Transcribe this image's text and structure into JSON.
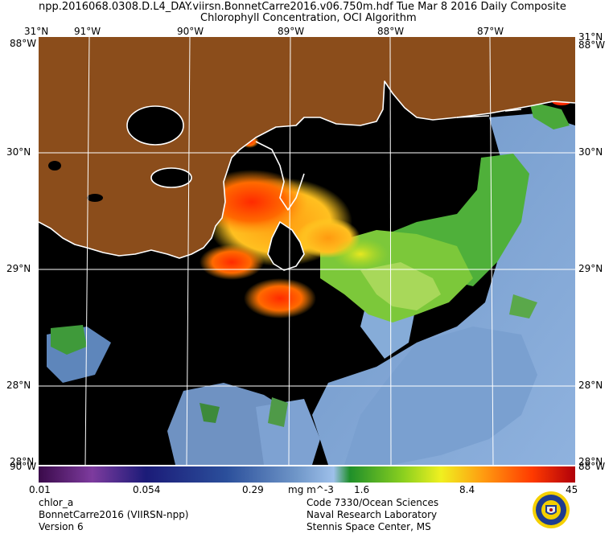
{
  "header": {
    "line1": "npp.2016068.0308.D.L4_DAY.viirsn.BonnetCarre2016.v06.750m.hdf    Tue Mar  8 2016 Daily Composite",
    "line2": "Chlorophyll Concentration, OCI Algorithm"
  },
  "map": {
    "lon_labels": [
      "91°W",
      "90°W",
      "89°W",
      "88°W",
      "87°W"
    ],
    "lat_labels": [
      "30°N",
      "29°N",
      "28°N"
    ],
    "corner_top_left_lat": "31°N",
    "corner_top_left_lon": "88°W",
    "corner_top_right_lat": "31°N",
    "corner_top_right_lon": "88°W",
    "corner_bottom_left_lat": "28°N",
    "corner_bottom_left_lon": "90°W",
    "corner_bottom_right_lat": "28°N",
    "corner_bottom_right_lon": "88°W",
    "colors": {
      "land": "#8b4d1b",
      "nodata": "#000000",
      "coast": "#ffffff",
      "grid": "#ffffff"
    }
  },
  "colorbar": {
    "ticks": [
      "0.01",
      "0.054",
      "0.29",
      "1.6",
      "8.4",
      "45"
    ],
    "units": "mg m^-3",
    "colors": [
      "#3a0a4a",
      "#7d3b9e",
      "#1b1b78",
      "#2b4f9b",
      "#6f96c8",
      "#9ec0ea",
      "#1f8f2a",
      "#8bd01f",
      "#f0f020",
      "#ff9a10",
      "#ff3a00",
      "#b0000a"
    ]
  },
  "footer": {
    "left": [
      "chlor_a",
      "BonnetCarre2016 (VIIRSN-npp)",
      "Version 6"
    ],
    "right": [
      "Code 7330/Ocean Sciences",
      "Naval Research Laboratory",
      "Stennis Space Center, MS"
    ]
  },
  "seal_colors": {
    "ring": "#f5d000",
    "inner": "#1f3c8e"
  }
}
